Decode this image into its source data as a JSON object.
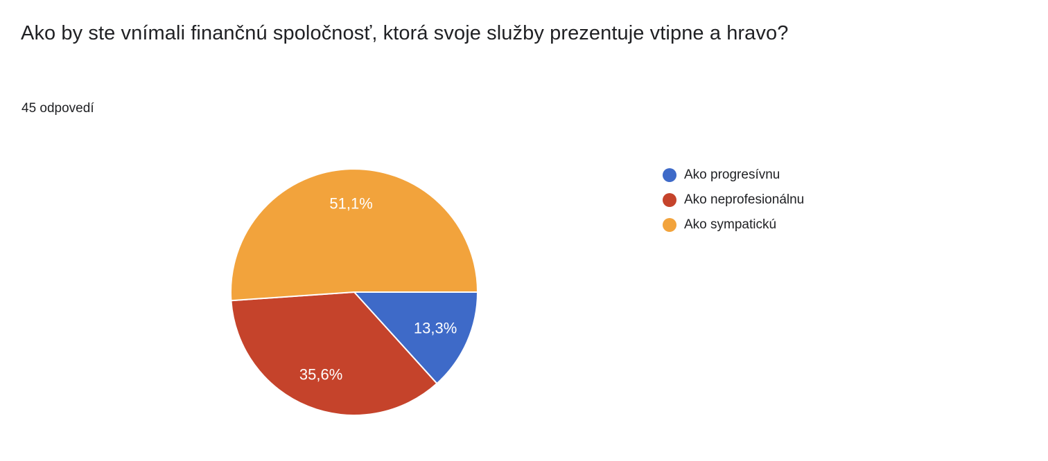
{
  "title": "Ako by ste vnímali finančnú spoločnosť, ktorá svoje služby prezentuje vtipne a hravo?",
  "responses_label": "45 odpovedí",
  "chart_data": {
    "type": "pie",
    "title": "Ako by ste vnímali finančnú spoločnosť, ktorá svoje služby prezentuje vtipne a hravo?",
    "subtitle": "45 odpovedí",
    "legend_position": "right",
    "start_angle_deg": 0,
    "direction": "clockwise",
    "label_radius_ratio": 0.72,
    "slice_border_color": "#ffffff",
    "slices": [
      {
        "label": "Ako progresívnu",
        "percent": 13.3,
        "display_percent": "13,3%",
        "color": "#3E6AC8"
      },
      {
        "label": "Ako neprofesionálnu",
        "percent": 35.6,
        "display_percent": "35,6%",
        "color": "#C5432B"
      },
      {
        "label": "Ako sympatickú",
        "percent": 51.1,
        "display_percent": "51,1%",
        "color": "#F2A33C"
      }
    ]
  }
}
